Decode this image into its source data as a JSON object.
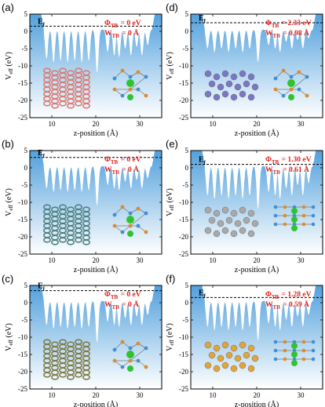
{
  "chart_data": [
    {
      "type": "area",
      "panel": "(a)",
      "xlabel": "z-position (Å)",
      "ylabel": "Veff (eV)",
      "xlim": [
        5,
        35
      ],
      "ylim": [
        -25,
        5
      ],
      "xticks": [
        "10",
        "20",
        "30"
      ],
      "yticks": [
        "5",
        "0",
        "-5",
        "-10",
        "-15",
        "-20",
        "-25"
      ],
      "fermi_level": 1.5,
      "fermi_label": "E",
      "fermi_sub": "f",
      "phi_label": "Φ",
      "phi_sub": "TB",
      "phi_value": "= 0 eV",
      "w_label": "W",
      "w_sub": "TB",
      "w_value": "= 0 Å",
      "wells": [
        [
          8.8,
          -8
        ],
        [
          10.4,
          -9
        ],
        [
          12.0,
          -8.5
        ],
        [
          13.6,
          -9
        ],
        [
          15.2,
          -8.5
        ],
        [
          16.8,
          -9
        ],
        [
          18.4,
          -8.5
        ],
        [
          20.3,
          -12
        ],
        [
          22.7,
          -6
        ],
        [
          24.2,
          -7
        ],
        [
          25.3,
          -7.5
        ],
        [
          26.7,
          -5
        ],
        [
          28.0,
          -7
        ],
        [
          29.3,
          -4.5
        ],
        [
          30.5,
          -7
        ],
        [
          31.8,
          -4
        ]
      ],
      "atom_color": "#d97a72",
      "atom_style": "ring"
    },
    {
      "type": "area",
      "panel": "(b)",
      "xlabel": "z-position (Å)",
      "ylabel": "Veff (eV)",
      "xlim": [
        5,
        35
      ],
      "ylim": [
        -25,
        5
      ],
      "xticks": [
        "10",
        "20",
        "30"
      ],
      "yticks": [
        "5",
        "0",
        "-5",
        "-10",
        "-15",
        "-20",
        "-25"
      ],
      "fermi_level": 3.0,
      "fermi_label": "E",
      "fermi_sub": "f",
      "phi_label": "Φ",
      "phi_sub": "TB",
      "phi_value": "= 0 eV",
      "w_label": "W",
      "w_sub": "TB",
      "w_value": "= 0 Å",
      "wells": [
        [
          8.8,
          -6
        ],
        [
          10.4,
          -7
        ],
        [
          12.0,
          -6.5
        ],
        [
          13.6,
          -7
        ],
        [
          15.2,
          -6.5
        ],
        [
          16.8,
          -7
        ],
        [
          18.4,
          -6.5
        ],
        [
          20.3,
          -11
        ],
        [
          22.7,
          -5
        ],
        [
          24.2,
          -6
        ],
        [
          25.3,
          -6.5
        ],
        [
          26.7,
          -4
        ],
        [
          28.0,
          -6
        ],
        [
          29.3,
          -3.5
        ],
        [
          30.5,
          -6
        ],
        [
          31.8,
          -3
        ]
      ],
      "atom_color": "#4d8080",
      "atom_style": "ring"
    },
    {
      "type": "area",
      "panel": "(c)",
      "xlabel": "z-position (Å)",
      "ylabel": "Veff (eV)",
      "xlim": [
        5,
        35
      ],
      "ylim": [
        -25,
        5
      ],
      "xticks": [
        "10",
        "20",
        "30"
      ],
      "yticks": [
        "5",
        "0",
        "-5",
        "-10",
        "-15",
        "-20",
        "-25"
      ],
      "fermi_level": 3.5,
      "fermi_label": "E",
      "fermi_sub": "f",
      "phi_label": "Φ",
      "phi_sub": "TB",
      "phi_value": "= 0 eV",
      "w_label": "W",
      "w_sub": "TB",
      "w_value": "= 0 Å",
      "wells": [
        [
          8.8,
          -6.5
        ],
        [
          10.4,
          -7.5
        ],
        [
          12.0,
          -7
        ],
        [
          13.6,
          -7.5
        ],
        [
          15.2,
          -7
        ],
        [
          16.8,
          -7.5
        ],
        [
          18.4,
          -7
        ],
        [
          20.3,
          -11.5
        ],
        [
          22.7,
          -5.5
        ],
        [
          24.2,
          -6.5
        ],
        [
          25.3,
          -7
        ],
        [
          26.7,
          -4.5
        ],
        [
          28.0,
          -6.5
        ],
        [
          29.3,
          -4
        ],
        [
          30.5,
          -6.5
        ],
        [
          31.8,
          -3.5
        ]
      ],
      "atom_color": "#7d7a45",
      "atom_style": "ring"
    },
    {
      "type": "area",
      "panel": "(d)",
      "xlabel": "z-position (Å)",
      "ylabel": "Veff (eV)",
      "xlim": [
        5,
        35
      ],
      "ylim": [
        -25,
        5
      ],
      "xticks": [
        "10",
        "20",
        "30"
      ],
      "yticks": [
        "5",
        "0",
        "-5",
        "-10",
        "-15",
        "-20",
        "-25"
      ],
      "fermi_level": 2.5,
      "fermi_label": "E",
      "fermi_sub": "f",
      "phi_label": "Φ",
      "phi_sub": "TB",
      "phi_value": "= 2.33 eV",
      "w_label": "W",
      "w_sub": "TB",
      "w_value": "= 0.98 Å",
      "wells": [
        [
          8.8,
          -5
        ],
        [
          10.4,
          -6
        ],
        [
          12.0,
          -5
        ],
        [
          13.6,
          -6
        ],
        [
          15.2,
          -5
        ],
        [
          16.8,
          -6
        ],
        [
          18.4,
          -5
        ],
        [
          20.3,
          -9
        ],
        [
          22.7,
          -4
        ],
        [
          24.2,
          -5
        ],
        [
          25.3,
          -6
        ],
        [
          26.7,
          -3
        ],
        [
          28.0,
          -5
        ],
        [
          29.3,
          -2.5
        ],
        [
          30.5,
          -5
        ],
        [
          31.8,
          -2
        ]
      ],
      "atom_color": "#7a78c4",
      "atom_style": "ball"
    },
    {
      "type": "area",
      "panel": "(e)",
      "xlabel": "z-position (Å)",
      "ylabel": "Veff (eV)",
      "xlim": [
        5,
        35
      ],
      "ylim": [
        -25,
        5
      ],
      "xticks": [
        "10",
        "20",
        "30"
      ],
      "yticks": [
        "5",
        "0",
        "-5",
        "-10",
        "-15",
        "-20",
        "-25"
      ],
      "fermi_level": 1.0,
      "fermi_label": "E",
      "fermi_sub": "f",
      "phi_label": "Φ",
      "phi_sub": "TB",
      "phi_value": "= 1.30 eV",
      "w_label": "W",
      "w_sub": "TB",
      "w_value": "= 0.61 Å",
      "wells": [
        [
          8.8,
          -8
        ],
        [
          10.4,
          -9
        ],
        [
          12.0,
          -8
        ],
        [
          13.6,
          -9
        ],
        [
          15.2,
          -8
        ],
        [
          16.8,
          -9
        ],
        [
          18.4,
          -8
        ],
        [
          20.3,
          -12
        ],
        [
          22.7,
          -7
        ],
        [
          24.2,
          -8
        ],
        [
          25.3,
          -9
        ],
        [
          26.7,
          -6
        ],
        [
          28.0,
          -8
        ],
        [
          29.3,
          -5
        ],
        [
          30.5,
          -8
        ],
        [
          31.8,
          -4.5
        ]
      ],
      "atom_color": "#a9a9a9",
      "atom_style": "ball"
    },
    {
      "type": "area",
      "panel": "(f)",
      "xlabel": "z-position (Å)",
      "ylabel": "Veff (eV)",
      "xlim": [
        5,
        35
      ],
      "ylim": [
        -25,
        5
      ],
      "xticks": [
        "10",
        "20",
        "30"
      ],
      "yticks": [
        "5",
        "0",
        "-5",
        "-10",
        "-15",
        "-20",
        "-25"
      ],
      "fermi_level": 1.5,
      "fermi_label": "E",
      "fermi_sub": "f",
      "phi_label": "Φ",
      "phi_sub": "TB",
      "phi_value": "= 1.28 eV",
      "w_label": "W",
      "w_sub": "TB",
      "w_value": "= 0.59 Å",
      "wells": [
        [
          8.8,
          -7
        ],
        [
          10.4,
          -8
        ],
        [
          12.0,
          -7
        ],
        [
          13.6,
          -8
        ],
        [
          15.2,
          -7
        ],
        [
          16.8,
          -8
        ],
        [
          18.4,
          -7
        ],
        [
          20.3,
          -11
        ],
        [
          22.7,
          -6
        ],
        [
          24.2,
          -7
        ],
        [
          25.3,
          -8
        ],
        [
          26.7,
          -5
        ],
        [
          28.0,
          -7
        ],
        [
          29.3,
          -4
        ],
        [
          30.5,
          -7
        ],
        [
          31.8,
          -3.5
        ]
      ],
      "atom_color": "#e0a53c",
      "atom_style": "ball"
    }
  ],
  "colors": {
    "fill_top": "#4f9fdc",
    "fill_bottom": "#ffffff",
    "annotation": "#e0201b",
    "fermi_line": "#000000",
    "structure_blue": "#3d8fd6",
    "structure_green": "#2fc42f",
    "structure_orange": "#e08a2a"
  }
}
